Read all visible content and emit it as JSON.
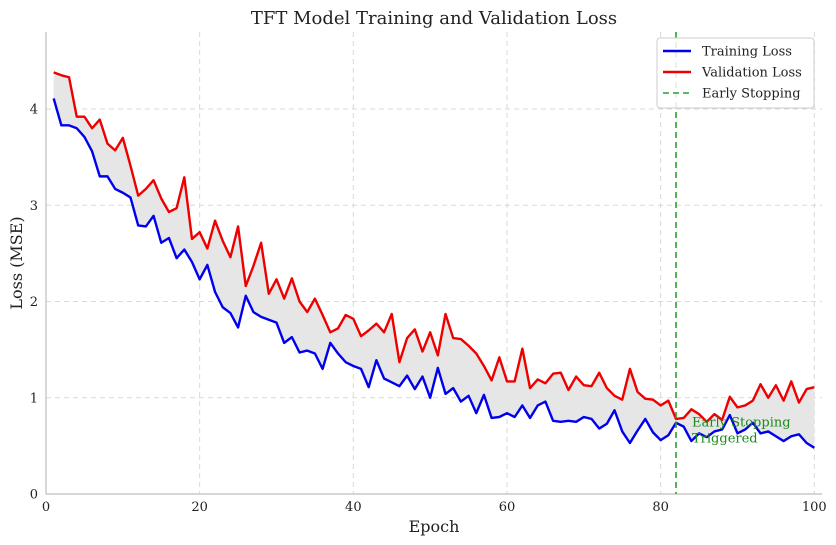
{
  "chart_data": {
    "type": "line",
    "title": "TFT Model Training and Validation Loss",
    "xlabel": "Epoch",
    "ylabel": "Loss (MSE)",
    "xlim": [
      0,
      101
    ],
    "ylim": [
      0,
      4.8
    ],
    "xticks": [
      0,
      20,
      40,
      60,
      80,
      100
    ],
    "yticks": [
      0,
      1,
      2,
      3,
      4
    ],
    "grid": true,
    "legend_position": "top-right",
    "x": [
      1,
      2,
      3,
      4,
      5,
      6,
      7,
      8,
      9,
      10,
      11,
      12,
      13,
      14,
      15,
      16,
      17,
      18,
      19,
      20,
      21,
      22,
      23,
      24,
      25,
      26,
      27,
      28,
      29,
      30,
      31,
      32,
      33,
      34,
      35,
      36,
      37,
      38,
      39,
      40,
      41,
      42,
      43,
      44,
      45,
      46,
      47,
      48,
      49,
      50,
      51,
      52,
      53,
      54,
      55,
      56,
      57,
      58,
      59,
      60,
      61,
      62,
      63,
      64,
      65,
      66,
      67,
      68,
      69,
      70,
      71,
      72,
      73,
      74,
      75,
      76,
      77,
      78,
      79,
      80,
      81,
      82,
      83,
      84,
      85,
      86,
      87,
      88,
      89,
      90,
      91,
      92,
      93,
      94,
      95,
      96,
      97,
      98,
      99,
      100
    ],
    "series": [
      {
        "name": "Training Loss",
        "color": "#0000ee",
        "values": [
          4.11,
          3.83,
          3.83,
          3.8,
          3.71,
          3.56,
          3.3,
          3.3,
          3.17,
          3.13,
          3.08,
          2.79,
          2.78,
          2.89,
          2.61,
          2.66,
          2.45,
          2.54,
          2.41,
          2.23,
          2.38,
          2.1,
          1.94,
          1.88,
          1.73,
          2.06,
          1.89,
          1.84,
          1.81,
          1.78,
          1.57,
          1.63,
          1.47,
          1.49,
          1.46,
          1.3,
          1.57,
          1.46,
          1.37,
          1.33,
          1.3,
          1.11,
          1.39,
          1.2,
          1.16,
          1.12,
          1.23,
          1.09,
          1.22,
          1.0,
          1.31,
          1.04,
          1.1,
          0.96,
          1.02,
          0.84,
          1.03,
          0.79,
          0.8,
          0.84,
          0.8,
          0.92,
          0.79,
          0.92,
          0.96,
          0.76,
          0.75,
          0.76,
          0.75,
          0.8,
          0.78,
          0.68,
          0.73,
          0.87,
          0.65,
          0.53,
          0.66,
          0.78,
          0.64,
          0.56,
          0.61,
          0.74,
          0.7,
          0.55,
          0.63,
          0.59,
          0.65,
          0.67,
          0.82,
          0.63,
          0.67,
          0.74,
          0.63,
          0.65,
          0.6,
          0.55,
          0.6,
          0.62,
          0.53,
          0.48
        ]
      },
      {
        "name": "Validation Loss",
        "color": "#ee0000",
        "values": [
          4.38,
          4.35,
          4.33,
          3.92,
          3.92,
          3.8,
          3.89,
          3.64,
          3.57,
          3.7,
          3.41,
          3.1,
          3.17,
          3.26,
          3.07,
          2.93,
          2.97,
          3.29,
          2.65,
          2.72,
          2.55,
          2.84,
          2.63,
          2.46,
          2.78,
          2.16,
          2.37,
          2.61,
          2.08,
          2.23,
          2.03,
          2.24,
          2.0,
          1.89,
          2.03,
          1.86,
          1.68,
          1.72,
          1.86,
          1.82,
          1.64,
          1.7,
          1.77,
          1.68,
          1.87,
          1.37,
          1.62,
          1.71,
          1.48,
          1.68,
          1.44,
          1.87,
          1.62,
          1.61,
          1.54,
          1.46,
          1.33,
          1.18,
          1.42,
          1.17,
          1.17,
          1.51,
          1.1,
          1.19,
          1.15,
          1.25,
          1.26,
          1.08,
          1.22,
          1.13,
          1.12,
          1.26,
          1.1,
          1.02,
          0.98,
          1.3,
          1.06,
          0.99,
          0.98,
          0.92,
          0.97,
          0.78,
          0.79,
          0.88,
          0.83,
          0.75,
          0.83,
          0.77,
          1.01,
          0.9,
          0.92,
          0.97,
          1.14,
          1.0,
          1.13,
          0.97,
          1.17,
          0.95,
          1.09,
          1.11
        ]
      }
    ],
    "early_stopping": {
      "name": "Early Stopping",
      "epoch": 82,
      "color": "#2ca02c",
      "annotation": "Early Stopping\nTriggered",
      "annotation_line1": "Early Stopping",
      "annotation_line2": "Triggered"
    },
    "fill_between_color": "#e6e6e6"
  }
}
